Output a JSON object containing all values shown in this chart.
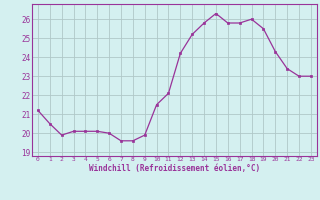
{
  "x": [
    0,
    1,
    2,
    3,
    4,
    5,
    6,
    7,
    8,
    9,
    10,
    11,
    12,
    13,
    14,
    15,
    16,
    17,
    18,
    19,
    20,
    21,
    22,
    23
  ],
  "y": [
    21.2,
    20.5,
    19.9,
    20.1,
    20.1,
    20.1,
    20.0,
    19.6,
    19.6,
    19.9,
    21.5,
    22.1,
    24.2,
    25.2,
    25.8,
    26.3,
    25.8,
    25.8,
    26.0,
    25.5,
    24.3,
    23.4,
    23.0,
    23.0
  ],
  "line_color": "#993399",
  "marker_color": "#993399",
  "bg_color": "#d4f0f0",
  "grid_color": "#b0c8c8",
  "xlabel": "Windchill (Refroidissement éolien,°C)",
  "xlabel_color": "#993399",
  "tick_color": "#993399",
  "spine_color": "#993399",
  "ylim_bottom": 18.8,
  "ylim_top": 26.8,
  "xlim_left": -0.5,
  "xlim_right": 23.5,
  "yticks": [
    19,
    20,
    21,
    22,
    23,
    24,
    25,
    26
  ],
  "xticks": [
    0,
    1,
    2,
    3,
    4,
    5,
    6,
    7,
    8,
    9,
    10,
    11,
    12,
    13,
    14,
    15,
    16,
    17,
    18,
    19,
    20,
    21,
    22,
    23
  ],
  "figsize": [
    3.2,
    2.0
  ],
  "dpi": 100
}
